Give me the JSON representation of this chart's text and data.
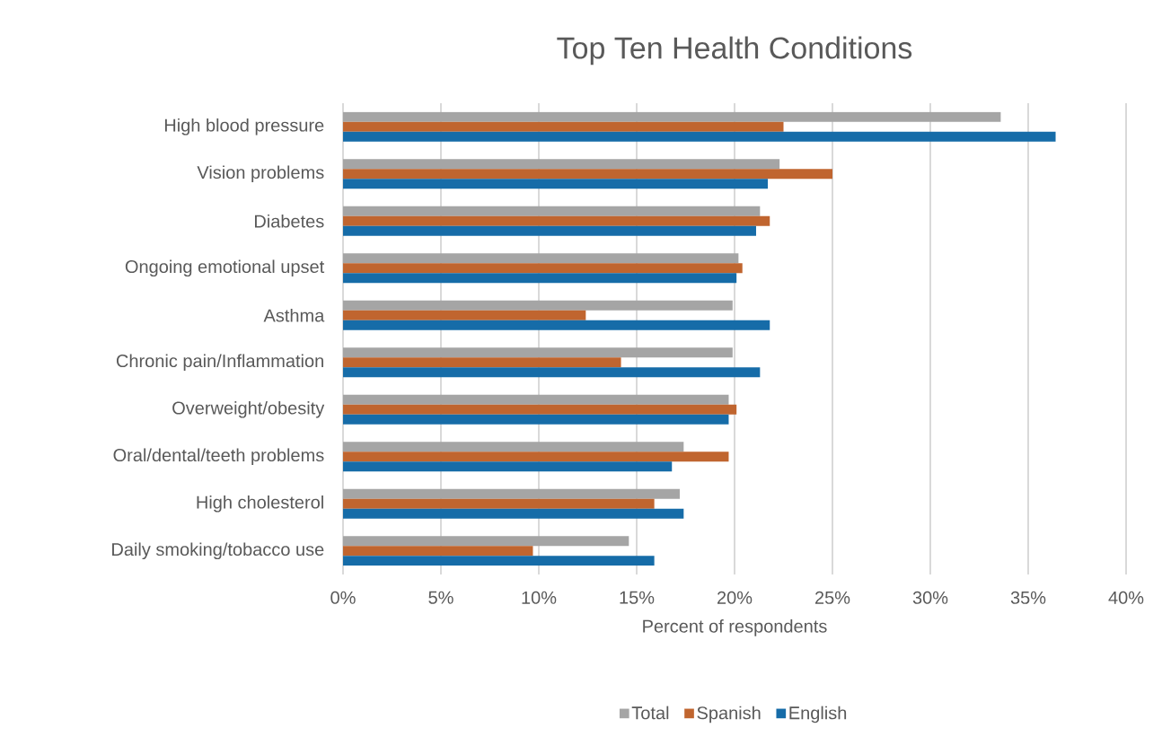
{
  "chart_data": {
    "type": "bar",
    "orientation": "horizontal",
    "title": "Top Ten Health Conditions",
    "xlabel": "Percent of respondents",
    "categories": [
      "High blood pressure",
      "Vision problems",
      "Diabetes",
      "Ongoing emotional upset",
      "Asthma",
      "Chronic pain/Inflammation",
      "Overweight/obesity",
      "Oral/dental/teeth problems",
      "High cholesterol",
      "Daily smoking/tobacco use"
    ],
    "series": [
      {
        "name": "Total",
        "color": "#a5a5a5",
        "values": [
          33.6,
          22.3,
          21.3,
          20.2,
          19.9,
          19.9,
          19.7,
          17.4,
          17.2,
          14.6
        ]
      },
      {
        "name": "Spanish",
        "color": "#c0652f",
        "values": [
          22.5,
          25.0,
          21.8,
          20.4,
          12.4,
          14.2,
          20.1,
          19.7,
          15.9,
          9.7
        ]
      },
      {
        "name": "English",
        "color": "#166ca8",
        "values": [
          36.4,
          21.7,
          21.1,
          20.1,
          21.8,
          21.3,
          19.7,
          16.8,
          17.4,
          15.9
        ]
      }
    ],
    "xlim": [
      0,
      40
    ],
    "xticks": [
      {
        "value": 0,
        "label": "0%"
      },
      {
        "value": 5,
        "label": "5%"
      },
      {
        "value": 10,
        "label": "10%"
      },
      {
        "value": 15,
        "label": "15%"
      },
      {
        "value": 20,
        "label": "20%"
      },
      {
        "value": 25,
        "label": "25%"
      },
      {
        "value": 30,
        "label": "30%"
      },
      {
        "value": 35,
        "label": "35%"
      },
      {
        "value": 40,
        "label": "40%"
      }
    ],
    "grid": "x",
    "legend": "bottom"
  }
}
